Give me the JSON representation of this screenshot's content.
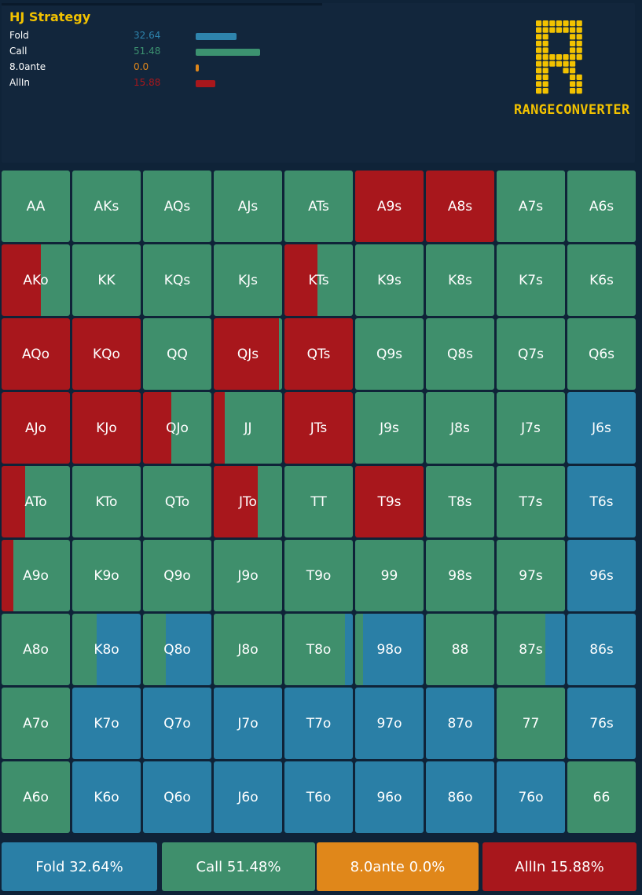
{
  "strategy": {
    "title": "HJ Strategy",
    "rows": [
      {
        "label": "Fold",
        "value": "32.64",
        "color": "#2e84ad",
        "pct": 32.64
      },
      {
        "label": "Call",
        "value": "51.48",
        "color": "#3c9270",
        "pct": 51.48
      },
      {
        "label": "8.0ante",
        "value": "0.0",
        "color": "#e0871a",
        "pct": 0.0
      },
      {
        "label": "AllIn",
        "value": "15.88",
        "color": "#a8171c",
        "pct": 15.88
      }
    ]
  },
  "logo": {
    "text": "RANGECONVERTER",
    "color": "#f2c200"
  },
  "colors": {
    "fold": "#2a7fa6",
    "call": "#3f8f6c",
    "ante": "#e0871a",
    "allin": "#a8171c"
  },
  "grid": [
    [
      {
        "l": "AA",
        "f": [
          [
            "call",
            1
          ]
        ]
      },
      {
        "l": "AKs",
        "f": [
          [
            "call",
            1
          ]
        ]
      },
      {
        "l": "AQs",
        "f": [
          [
            "call",
            1
          ]
        ]
      },
      {
        "l": "AJs",
        "f": [
          [
            "call",
            1
          ]
        ]
      },
      {
        "l": "ATs",
        "f": [
          [
            "call",
            1
          ]
        ]
      },
      {
        "l": "A9s",
        "f": [
          [
            "allin",
            1
          ]
        ]
      },
      {
        "l": "A8s",
        "f": [
          [
            "allin",
            1
          ]
        ]
      },
      {
        "l": "A7s",
        "f": [
          [
            "call",
            1
          ]
        ]
      },
      {
        "l": "A6s",
        "f": [
          [
            "call",
            1
          ]
        ]
      }
    ],
    [
      {
        "l": "AKo",
        "f": [
          [
            "allin",
            0.58
          ],
          [
            "call",
            0.42
          ]
        ]
      },
      {
        "l": "KK",
        "f": [
          [
            "call",
            1
          ]
        ]
      },
      {
        "l": "KQs",
        "f": [
          [
            "call",
            1
          ]
        ]
      },
      {
        "l": "KJs",
        "f": [
          [
            "call",
            1
          ]
        ]
      },
      {
        "l": "KTs",
        "f": [
          [
            "allin",
            0.48
          ],
          [
            "call",
            0.52
          ]
        ]
      },
      {
        "l": "K9s",
        "f": [
          [
            "call",
            1
          ]
        ]
      },
      {
        "l": "K8s",
        "f": [
          [
            "call",
            1
          ]
        ]
      },
      {
        "l": "K7s",
        "f": [
          [
            "call",
            1
          ]
        ]
      },
      {
        "l": "K6s",
        "f": [
          [
            "call",
            1
          ]
        ]
      }
    ],
    [
      {
        "l": "AQo",
        "f": [
          [
            "allin",
            1
          ]
        ]
      },
      {
        "l": "KQo",
        "f": [
          [
            "allin",
            1
          ]
        ]
      },
      {
        "l": "QQ",
        "f": [
          [
            "call",
            1
          ]
        ]
      },
      {
        "l": "QJs",
        "f": [
          [
            "allin",
            0.95
          ],
          [
            "call",
            0.05
          ]
        ]
      },
      {
        "l": "QTs",
        "f": [
          [
            "allin",
            1
          ]
        ]
      },
      {
        "l": "Q9s",
        "f": [
          [
            "call",
            1
          ]
        ]
      },
      {
        "l": "Q8s",
        "f": [
          [
            "call",
            1
          ]
        ]
      },
      {
        "l": "Q7s",
        "f": [
          [
            "call",
            1
          ]
        ]
      },
      {
        "l": "Q6s",
        "f": [
          [
            "call",
            1
          ]
        ]
      }
    ],
    [
      {
        "l": "AJo",
        "f": [
          [
            "allin",
            1
          ]
        ]
      },
      {
        "l": "KJo",
        "f": [
          [
            "allin",
            1
          ]
        ]
      },
      {
        "l": "QJo",
        "f": [
          [
            "allin",
            0.41
          ],
          [
            "call",
            0.59
          ]
        ]
      },
      {
        "l": "JJ",
        "f": [
          [
            "allin",
            0.16
          ],
          [
            "call",
            0.84
          ]
        ]
      },
      {
        "l": "JTs",
        "f": [
          [
            "allin",
            1
          ]
        ]
      },
      {
        "l": "J9s",
        "f": [
          [
            "call",
            1
          ]
        ]
      },
      {
        "l": "J8s",
        "f": [
          [
            "call",
            1
          ]
        ]
      },
      {
        "l": "J7s",
        "f": [
          [
            "call",
            1
          ]
        ]
      },
      {
        "l": "J6s",
        "f": [
          [
            "fold",
            1
          ]
        ]
      }
    ],
    [
      {
        "l": "ATo",
        "f": [
          [
            "allin",
            0.34
          ],
          [
            "call",
            0.66
          ]
        ]
      },
      {
        "l": "KTo",
        "f": [
          [
            "call",
            1
          ]
        ]
      },
      {
        "l": "QTo",
        "f": [
          [
            "call",
            1
          ]
        ]
      },
      {
        "l": "JTo",
        "f": [
          [
            "allin",
            0.64
          ],
          [
            "call",
            0.36
          ]
        ]
      },
      {
        "l": "TT",
        "f": [
          [
            "call",
            1
          ]
        ]
      },
      {
        "l": "T9s",
        "f": [
          [
            "allin",
            1
          ]
        ]
      },
      {
        "l": "T8s",
        "f": [
          [
            "call",
            1
          ]
        ]
      },
      {
        "l": "T7s",
        "f": [
          [
            "call",
            1
          ]
        ]
      },
      {
        "l": "T6s",
        "f": [
          [
            "fold",
            1
          ]
        ]
      }
    ],
    [
      {
        "l": "A9o",
        "f": [
          [
            "allin",
            0.17
          ],
          [
            "call",
            0.83
          ]
        ]
      },
      {
        "l": "K9o",
        "f": [
          [
            "call",
            1
          ]
        ]
      },
      {
        "l": "Q9o",
        "f": [
          [
            "call",
            1
          ]
        ]
      },
      {
        "l": "J9o",
        "f": [
          [
            "call",
            1
          ]
        ]
      },
      {
        "l": "T9o",
        "f": [
          [
            "call",
            1
          ]
        ]
      },
      {
        "l": "99",
        "f": [
          [
            "call",
            1
          ]
        ]
      },
      {
        "l": "98s",
        "f": [
          [
            "call",
            1
          ]
        ]
      },
      {
        "l": "97s",
        "f": [
          [
            "call",
            1
          ]
        ]
      },
      {
        "l": "96s",
        "f": [
          [
            "fold",
            1
          ]
        ]
      }
    ],
    [
      {
        "l": "A8o",
        "f": [
          [
            "call",
            1
          ]
        ]
      },
      {
        "l": "K8o",
        "f": [
          [
            "call",
            0.36
          ],
          [
            "fold",
            0.64
          ]
        ]
      },
      {
        "l": "Q8o",
        "f": [
          [
            "call",
            0.33
          ],
          [
            "fold",
            0.67
          ]
        ]
      },
      {
        "l": "J8o",
        "f": [
          [
            "call",
            1
          ]
        ]
      },
      {
        "l": "T8o",
        "f": [
          [
            "call",
            0.88
          ],
          [
            "fold",
            0.12
          ]
        ]
      },
      {
        "l": "98o",
        "f": [
          [
            "call",
            0.11
          ],
          [
            "fold",
            0.89
          ]
        ]
      },
      {
        "l": "88",
        "f": [
          [
            "call",
            1
          ]
        ]
      },
      {
        "l": "87s",
        "f": [
          [
            "call",
            0.71
          ],
          [
            "fold",
            0.29
          ]
        ]
      },
      {
        "l": "86s",
        "f": [
          [
            "fold",
            1
          ]
        ]
      }
    ],
    [
      {
        "l": "A7o",
        "f": [
          [
            "call",
            1
          ]
        ]
      },
      {
        "l": "K7o",
        "f": [
          [
            "fold",
            1
          ]
        ]
      },
      {
        "l": "Q7o",
        "f": [
          [
            "fold",
            1
          ]
        ]
      },
      {
        "l": "J7o",
        "f": [
          [
            "fold",
            1
          ]
        ]
      },
      {
        "l": "T7o",
        "f": [
          [
            "fold",
            1
          ]
        ]
      },
      {
        "l": "97o",
        "f": [
          [
            "fold",
            1
          ]
        ]
      },
      {
        "l": "87o",
        "f": [
          [
            "fold",
            1
          ]
        ]
      },
      {
        "l": "77",
        "f": [
          [
            "call",
            1
          ]
        ]
      },
      {
        "l": "76s",
        "f": [
          [
            "fold",
            1
          ]
        ]
      }
    ],
    [
      {
        "l": "A6o",
        "f": [
          [
            "call",
            1
          ]
        ]
      },
      {
        "l": "K6o",
        "f": [
          [
            "fold",
            1
          ]
        ]
      },
      {
        "l": "Q6o",
        "f": [
          [
            "fold",
            1
          ]
        ]
      },
      {
        "l": "J6o",
        "f": [
          [
            "fold",
            1
          ]
        ]
      },
      {
        "l": "T6o",
        "f": [
          [
            "fold",
            1
          ]
        ]
      },
      {
        "l": "96o",
        "f": [
          [
            "fold",
            1
          ]
        ]
      },
      {
        "l": "86o",
        "f": [
          [
            "fold",
            1
          ]
        ]
      },
      {
        "l": "76o",
        "f": [
          [
            "fold",
            1
          ]
        ]
      },
      {
        "l": "66",
        "f": [
          [
            "call",
            1
          ]
        ]
      }
    ]
  ],
  "footer": [
    {
      "label": "Fold 32.64%",
      "color": "#2a7fa6"
    },
    {
      "label": "Call 51.48%",
      "color": "#3f8f6c"
    },
    {
      "label": "8.0ante 0.0%",
      "color": "#e0871a"
    },
    {
      "label": "AllIn 15.88%",
      "color": "#a8171c"
    }
  ]
}
